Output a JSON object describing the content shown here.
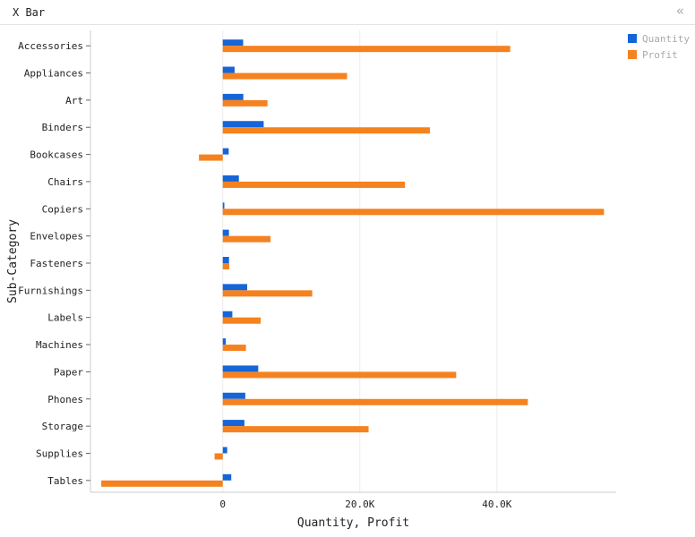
{
  "window": {
    "title": "X Bar",
    "collapse_icon": "double-chevron-left-icon"
  },
  "chart_data": {
    "type": "bar",
    "orientation": "horizontal",
    "categories": [
      "Accessories",
      "Appliances",
      "Art",
      "Binders",
      "Bookcases",
      "Chairs",
      "Copiers",
      "Envelopes",
      "Fasteners",
      "Furnishings",
      "Labels",
      "Machines",
      "Paper",
      "Phones",
      "Storage",
      "Supplies",
      "Tables"
    ],
    "series": [
      {
        "name": "Quantity",
        "color": "#1565d8",
        "values": [
          2976,
          1729,
          3000,
          5974,
          868,
          2356,
          234,
          906,
          914,
          3563,
          1400,
          440,
          5178,
          3289,
          3158,
          647,
          1241
        ]
      },
      {
        "name": "Profit",
        "color": "#f5821f",
        "values": [
          41937,
          18138,
          6528,
          30222,
          -3473,
          26590,
          55618,
          6964,
          950,
          13059,
          5546,
          3385,
          34054,
          44516,
          21279,
          -1189,
          -17725
        ]
      }
    ],
    "xlabel": "Quantity, Profit",
    "ylabel": "Sub-Category",
    "xlim": [
      -19300,
      57400
    ],
    "xticks": [
      0,
      20000,
      40000
    ],
    "xtick_labels": [
      "0",
      "20.0K",
      "40.0K"
    ],
    "grid": "vertical",
    "legend": "top-right"
  }
}
